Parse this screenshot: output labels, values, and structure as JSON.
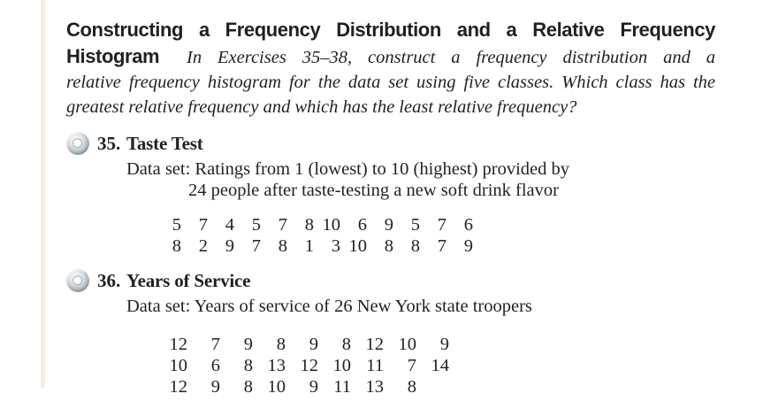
{
  "page": {
    "left_rule_color": "#f6ecdf",
    "text_color": "#231f20"
  },
  "header": {
    "line1_bold": "Constructing a Frequency Distribution and a Relative Frequency",
    "line2_bold": "Histogram",
    "line2_italic": "In Exercises 35–38, construct a frequency distribution and a",
    "line3_italic": "relative frequency histogram for the data set using five classes. Which class has the",
    "line4_italic": "greatest relative frequency and which has the least relative frequency?"
  },
  "exercises": [
    {
      "number": "35.",
      "title": "Taste Test",
      "icon": "cd-icon",
      "description_line1": "Data set: Ratings from 1 (lowest) to 10 (highest) provided by",
      "description_line2": "24 people after taste-testing a new soft drink flavor",
      "data_rows": [
        [
          5,
          7,
          4,
          5,
          7,
          8,
          10,
          6,
          9,
          5,
          7,
          6
        ],
        [
          8,
          2,
          9,
          7,
          8,
          1,
          3,
          10,
          8,
          8,
          7,
          9
        ]
      ]
    },
    {
      "number": "36.",
      "title": "Years of Service",
      "icon": "cd-icon",
      "description_line1": "Data set: Years of service of 26 New York state troopers",
      "data_rows": [
        [
          12,
          7,
          9,
          8,
          9,
          8,
          12,
          10,
          9
        ],
        [
          10,
          6,
          8,
          13,
          12,
          10,
          11,
          7,
          14
        ],
        [
          12,
          9,
          8,
          10,
          9,
          11,
          13,
          8
        ]
      ]
    }
  ]
}
